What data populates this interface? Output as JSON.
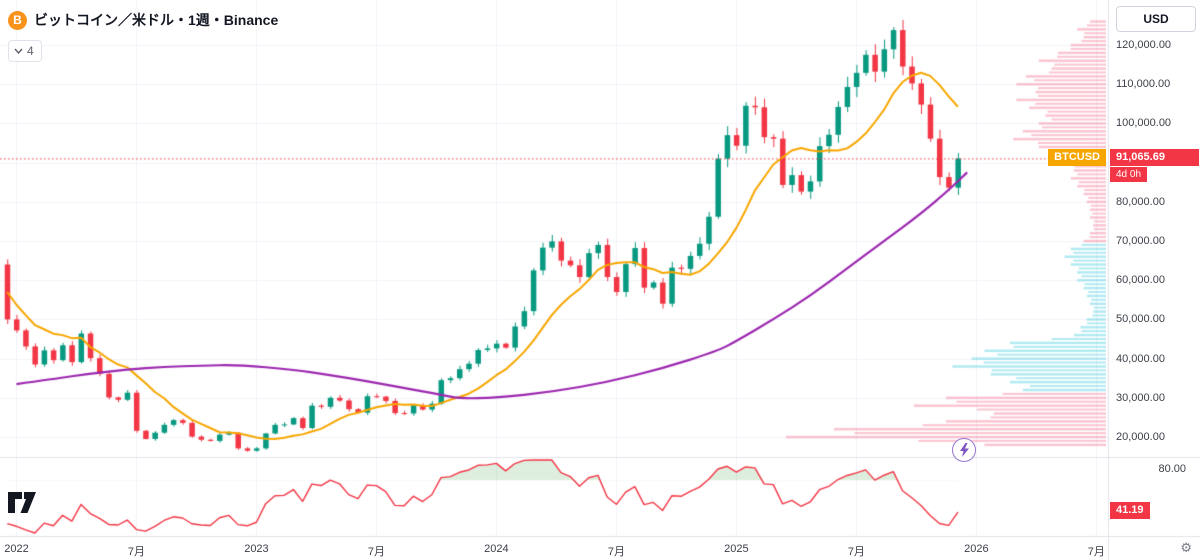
{
  "header": {
    "title": "ビットコイン／米ドル・1週・Binance",
    "interval_selector": "4"
  },
  "icons": {
    "bitcoin_logo": "B",
    "gear": "⚙"
  },
  "price_axis": {
    "currency_button": "USD",
    "labels": [
      {
        "text": "120,000.00",
        "value": 120000
      },
      {
        "text": "110,000.00",
        "value": 110000
      },
      {
        "text": "100,000.00",
        "value": 100000
      },
      {
        "text": "80,000.00",
        "value": 80000
      },
      {
        "text": "70,000.00",
        "value": 70000
      },
      {
        "text": "60,000.00",
        "value": 60000
      },
      {
        "text": "50,000.00",
        "value": 50000
      },
      {
        "text": "40,000.00",
        "value": 40000
      },
      {
        "text": "30,000.00",
        "value": 30000
      },
      {
        "text": "20,000.00",
        "value": 20000
      }
    ],
    "symbol_badge": "BTCUSD",
    "last_price_label": "91,065.69",
    "countdown_label": "4d 0h"
  },
  "indicator_pane": {
    "top_axis_label": "80.00",
    "value_badge": "41.19"
  },
  "time_axis": {
    "labels": [
      {
        "text": "2022",
        "i": 2
      },
      {
        "text": "7月",
        "i": 15
      },
      {
        "text": "2023",
        "i": 28
      },
      {
        "text": "7月",
        "i": 41
      },
      {
        "text": "2024",
        "i": 54
      },
      {
        "text": "7月",
        "i": 67
      },
      {
        "text": "2025",
        "i": 80
      },
      {
        "text": "7月",
        "i": 93
      },
      {
        "text": "2026",
        "i": 106
      },
      {
        "text": "7月",
        "i": 119
      }
    ]
  },
  "colors": {
    "up": "#089981",
    "down": "#f23645",
    "ma_fast": "#f7a600",
    "ma_slow": "#9c27b0",
    "rsi_line": "#f23645",
    "rsi_fill": "rgba(67,160,71,0.18)",
    "profile_pink": "rgba(244,110,140,0.40)",
    "profile_teal": "rgba(34,195,217,0.35)",
    "grid": "#f0f3fa",
    "separator": "#e0e3eb",
    "accent_red": "#f23645",
    "badge_orange": "#f7a600"
  },
  "chart_data": {
    "type": "candlestick",
    "title": "ビットコイン／米ドル・1週・Binance",
    "symbol": "BTCUSD",
    "exchange": "Binance",
    "interval": "1週",
    "last_price": 91065.69,
    "countdown": "4d 0h",
    "ylim": [
      14000,
      128000
    ],
    "price_axis_ticks": [
      120000,
      110000,
      100000,
      90000,
      80000,
      70000,
      60000,
      50000,
      40000,
      30000,
      20000
    ],
    "closes_note": "approximate bi-weekly closes, late 2021 through current bar",
    "closes": [
      64000,
      50000,
      47200,
      43100,
      38500,
      42100,
      39600,
      43400,
      39100,
      46400,
      40100,
      36100,
      30100,
      29500,
      31300,
      21600,
      19500,
      21100,
      23100,
      24300,
      23600,
      20100,
      19300,
      19000,
      20600,
      21100,
      17100,
      16500,
      17100,
      20900,
      23100,
      23200,
      24800,
      22300,
      28000,
      27700,
      30000,
      29300,
      27100,
      26200,
      30400,
      30300,
      29200,
      26100,
      26000,
      28100,
      27000,
      28500,
      34500,
      35000,
      37300,
      38700,
      42200,
      42600,
      43800,
      42800,
      48200,
      52100,
      62500,
      68300,
      69900,
      65000,
      63800,
      60800,
      66900,
      69000,
      60800,
      57000,
      64100,
      68200,
      58100,
      59400,
      54000,
      63200,
      62900,
      66200,
      69300,
      76200,
      91000,
      97000,
      94300,
      104500,
      104100,
      96500,
      96100,
      84300,
      86800,
      82600,
      85200,
      94200,
      97100,
      104200,
      109300,
      112900,
      117500,
      113200,
      118900,
      123800,
      114500,
      110200,
      104800,
      96100,
      86300,
      83600,
      91065.69
    ],
    "overlays": {
      "ma_fast_period_weeks": 20,
      "ma_slow_period_weeks": 200,
      "ma_slow_points": [
        [
          2,
          33500
        ],
        [
          6,
          34800
        ],
        [
          10,
          36200
        ],
        [
          14,
          37200
        ],
        [
          18,
          37900
        ],
        [
          22,
          38200
        ],
        [
          26,
          38400
        ],
        [
          32,
          37200
        ],
        [
          36,
          35800
        ],
        [
          40,
          34200
        ],
        [
          44,
          32500
        ],
        [
          48,
          30800
        ],
        [
          50,
          29800
        ],
        [
          54,
          30000
        ],
        [
          60,
          31500
        ],
        [
          66,
          34000
        ],
        [
          72,
          37500
        ],
        [
          78,
          42000
        ],
        [
          80,
          44500
        ],
        [
          84,
          50000
        ],
        [
          88,
          56000
        ],
        [
          92,
          63000
        ],
        [
          96,
          70000
        ],
        [
          100,
          77000
        ],
        [
          103,
          83000
        ],
        [
          105,
          87500
        ]
      ]
    },
    "lower_indicator": {
      "type": "RSI",
      "last_value": 41.19,
      "visible_tick": 80.0
    },
    "volume_profile_format": "[price_thousands, width_0to1, color]",
    "volume_profile_bars": [
      [
        126,
        0.05,
        "pink"
      ],
      [
        124,
        0.09,
        "pink"
      ],
      [
        122,
        0.07,
        "pink"
      ],
      [
        120,
        0.11,
        "pink"
      ],
      [
        118,
        0.15,
        "pink"
      ],
      [
        116,
        0.21,
        "pink"
      ],
      [
        114,
        0.17,
        "pink"
      ],
      [
        112,
        0.25,
        "pink"
      ],
      [
        110,
        0.28,
        "pink"
      ],
      [
        108,
        0.22,
        "pink"
      ],
      [
        106,
        0.28,
        "pink"
      ],
      [
        104,
        0.24,
        "pink"
      ],
      [
        102,
        0.19,
        "pink"
      ],
      [
        100,
        0.21,
        "pink"
      ],
      [
        98,
        0.26,
        "pink"
      ],
      [
        96,
        0.29,
        "pink"
      ],
      [
        94,
        0.21,
        "pink"
      ],
      [
        92,
        0.17,
        "pink"
      ],
      [
        90,
        0.13,
        "pink"
      ],
      [
        88,
        0.1,
        "pink"
      ],
      [
        86,
        0.11,
        "pink"
      ],
      [
        84,
        0.09,
        "pink"
      ],
      [
        82,
        0.07,
        "pink"
      ],
      [
        80,
        0.06,
        "pink"
      ],
      [
        78,
        0.05,
        "pink"
      ],
      [
        76,
        0.05,
        "pink"
      ],
      [
        74,
        0.04,
        "pink"
      ],
      [
        72,
        0.05,
        "pink"
      ],
      [
        70,
        0.07,
        "pink"
      ],
      [
        68,
        0.11,
        "teal"
      ],
      [
        66,
        0.13,
        "teal"
      ],
      [
        64,
        0.11,
        "teal"
      ],
      [
        62,
        0.09,
        "teal"
      ],
      [
        60,
        0.09,
        "teal"
      ],
      [
        58,
        0.07,
        "teal"
      ],
      [
        56,
        0.06,
        "teal"
      ],
      [
        54,
        0.05,
        "teal"
      ],
      [
        52,
        0.04,
        "teal"
      ],
      [
        50,
        0.06,
        "teal"
      ],
      [
        48,
        0.08,
        "teal"
      ],
      [
        46,
        0.1,
        "teal"
      ],
      [
        44,
        0.3,
        "teal"
      ],
      [
        42,
        0.38,
        "teal"
      ],
      [
        40,
        0.42,
        "teal"
      ],
      [
        38,
        0.48,
        "teal"
      ],
      [
        36,
        0.36,
        "teal"
      ],
      [
        34,
        0.3,
        "teal"
      ],
      [
        32,
        0.26,
        "teal"
      ],
      [
        30,
        0.5,
        "pink"
      ],
      [
        28,
        0.6,
        "pink"
      ],
      [
        26,
        0.35,
        "pink"
      ],
      [
        24,
        0.5,
        "pink"
      ],
      [
        22,
        0.85,
        "pink"
      ],
      [
        20,
        1.0,
        "pink"
      ],
      [
        18,
        0.38,
        "pink"
      ]
    ]
  }
}
